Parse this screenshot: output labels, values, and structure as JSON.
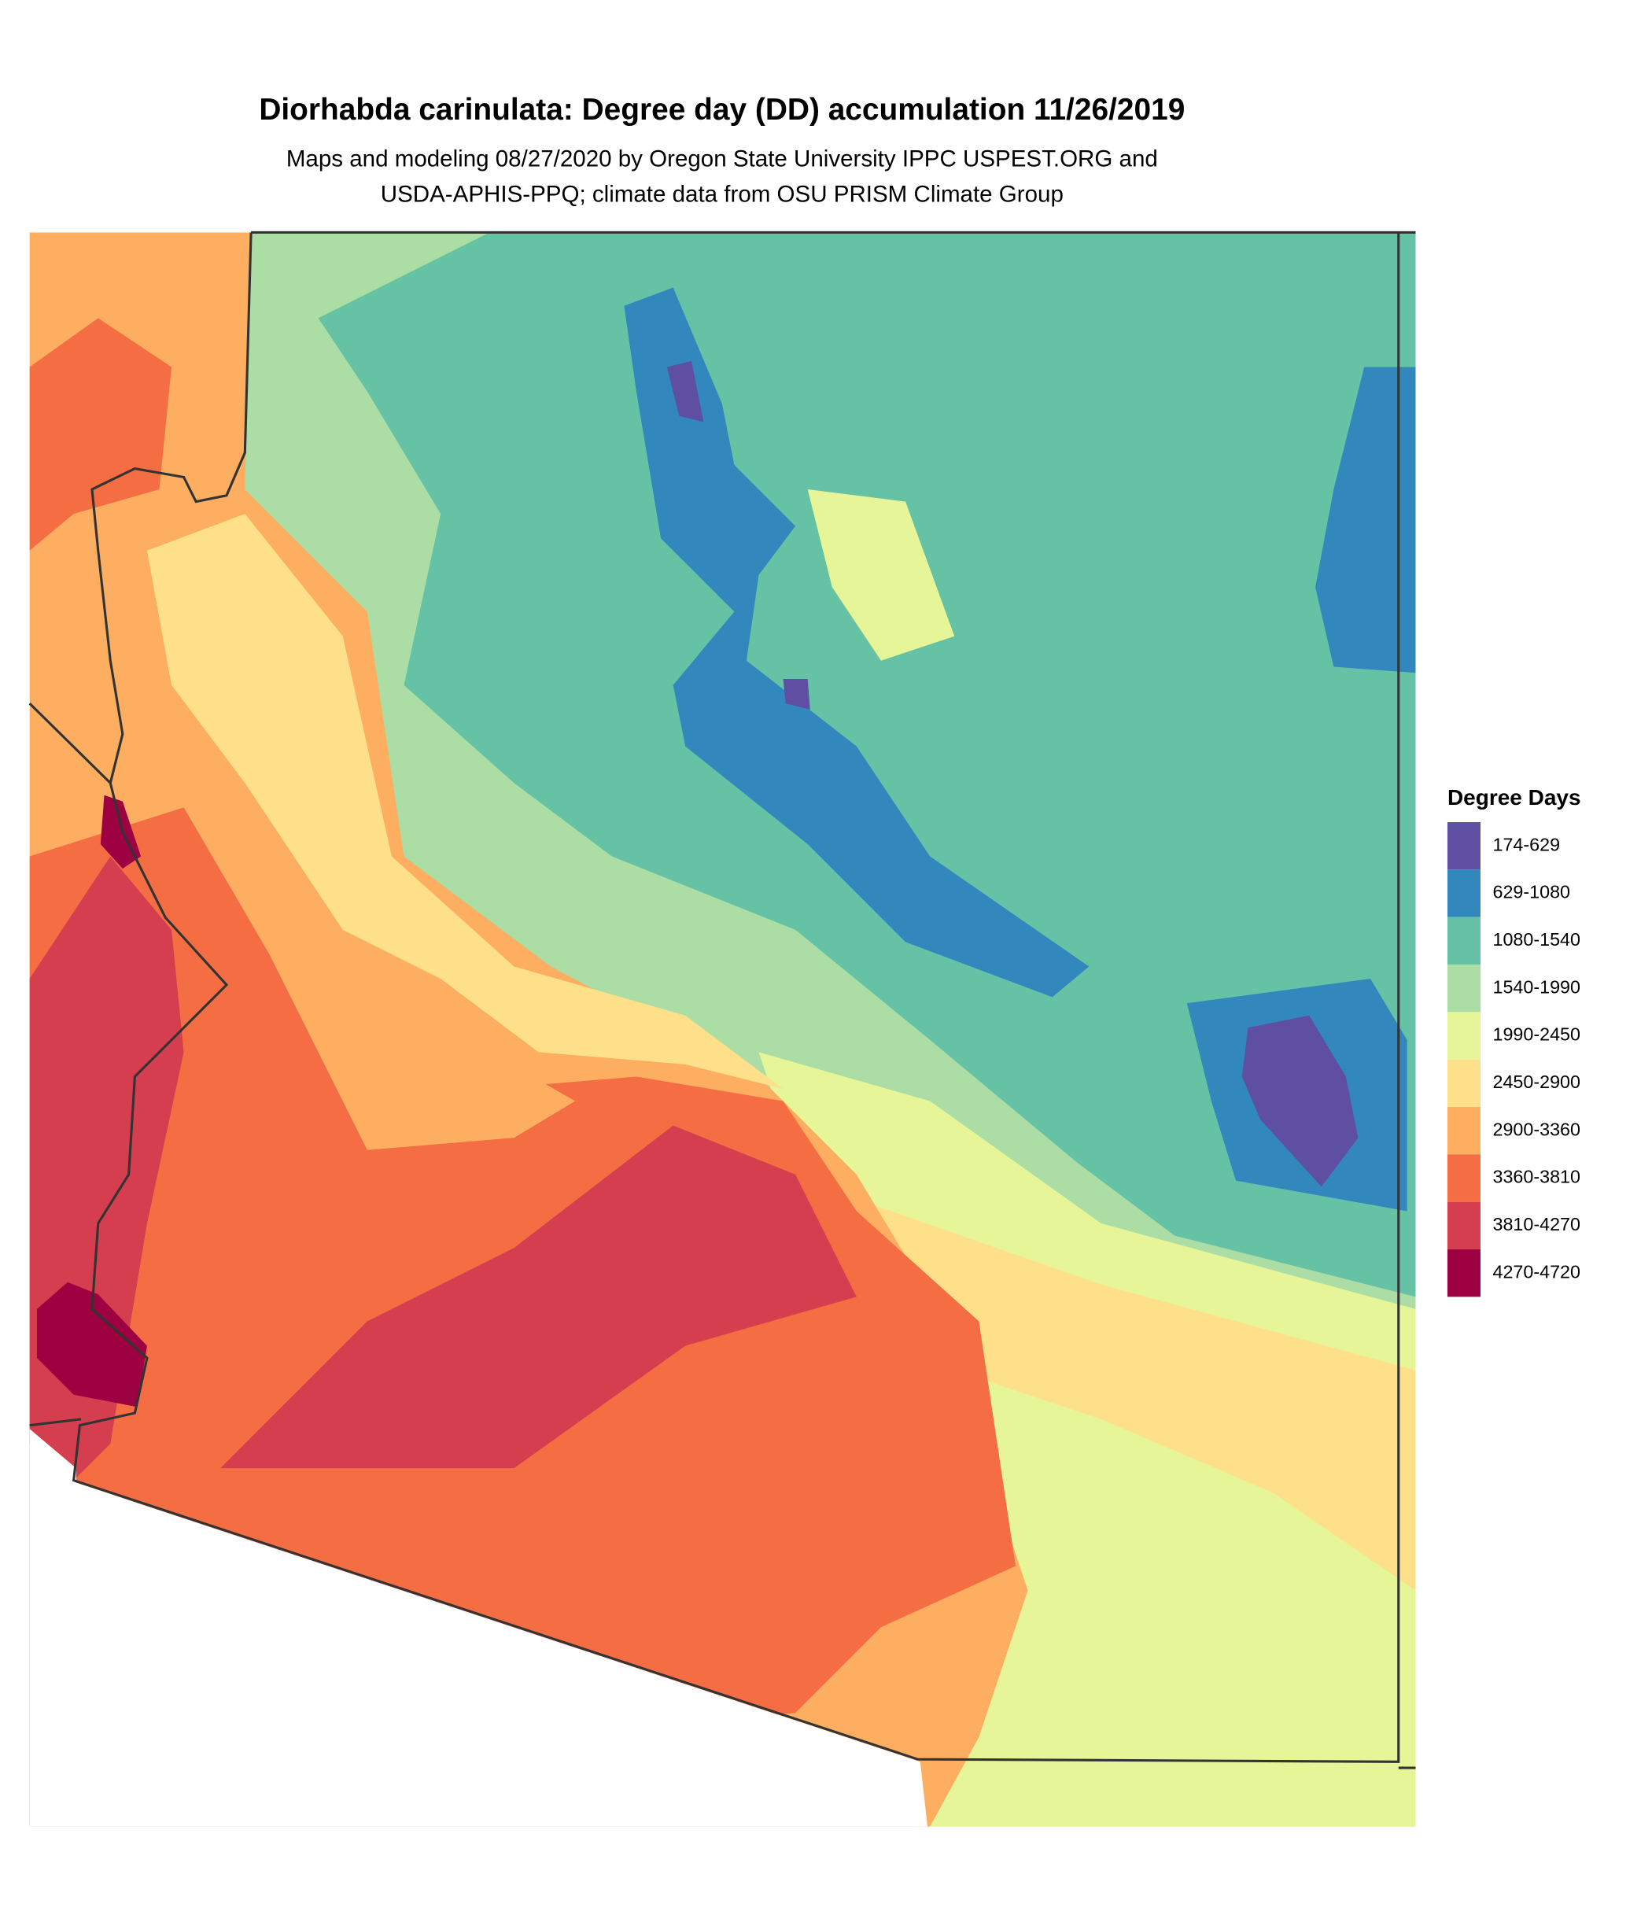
{
  "title": "Diorhabda carinulata: Degree day (DD) accumulation 11/26/2019",
  "subtitle": [
    "Maps and modeling 08/27/2020 by Oregon State University IPPC USPEST.ORG and",
    "USDA-APHIS-PPQ; climate data from OSU PRISM Climate Group"
  ],
  "legend": {
    "title": "Degree Days",
    "items": [
      {
        "label": "174-629",
        "color": "#5e4fa2"
      },
      {
        "label": "629-1080",
        "color": "#3288bd"
      },
      {
        "label": "1080-1540",
        "color": "#66c2a5"
      },
      {
        "label": "1540-1990",
        "color": "#abdda4"
      },
      {
        "label": "1990-2450",
        "color": "#e6f598"
      },
      {
        "label": "2450-2900",
        "color": "#fee08b"
      },
      {
        "label": "2900-3360",
        "color": "#fdae61"
      },
      {
        "label": "3360-3810",
        "color": "#f46d43"
      },
      {
        "label": "3810-4270",
        "color": "#d53e4f"
      },
      {
        "label": "4270-4720",
        "color": "#9e0142"
      }
    ]
  }
}
